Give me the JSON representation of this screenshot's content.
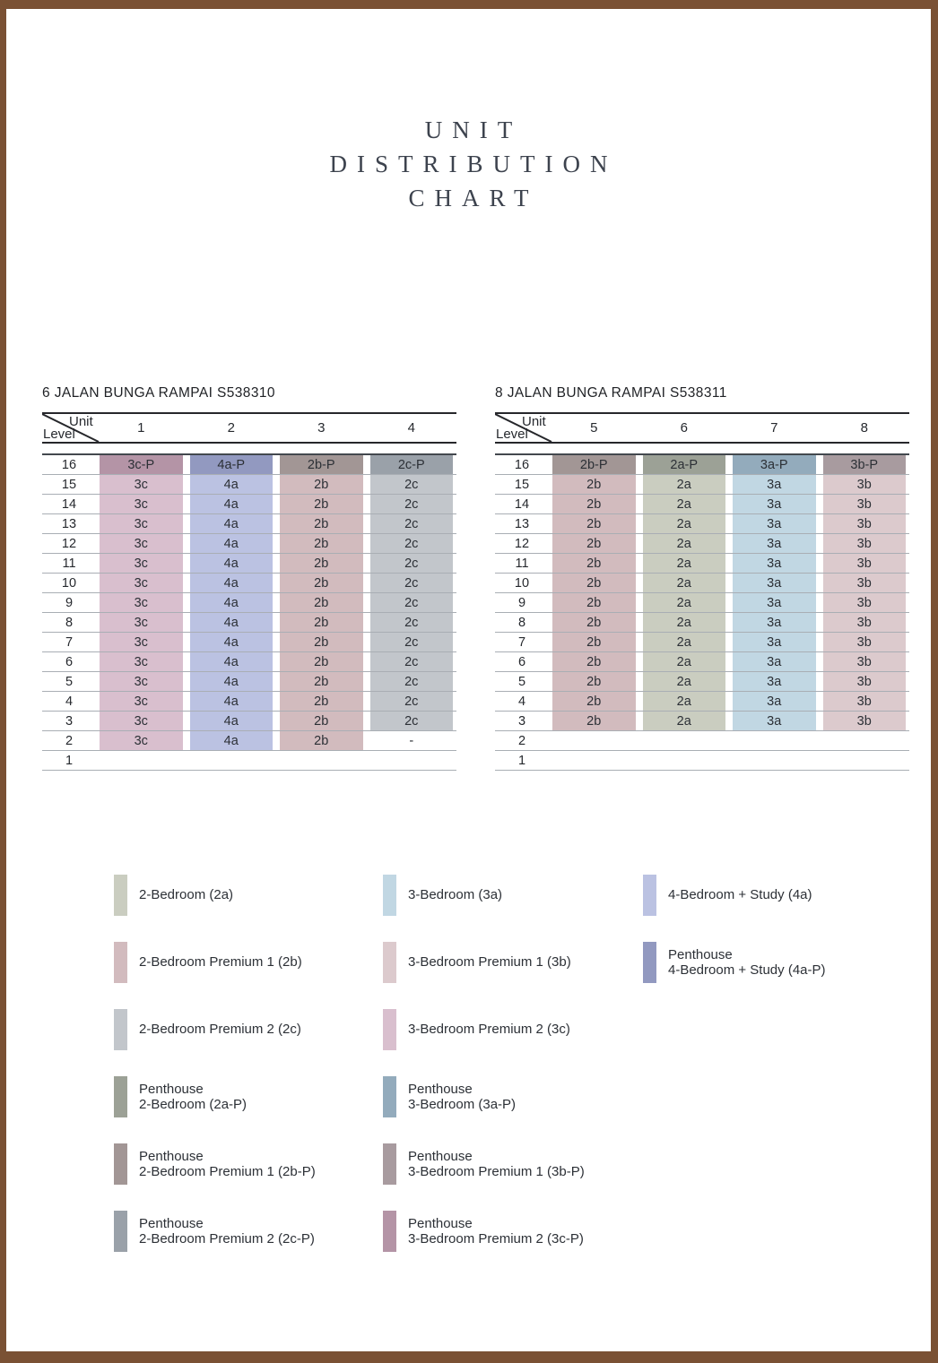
{
  "page": {
    "frame_color": "#7a5134",
    "title_color": "#3d434e",
    "title_lines": [
      "UNIT",
      "DISTRIBUTION",
      "CHART"
    ]
  },
  "unit_colors": {
    "2a": "#cacdc0",
    "2b": "#d2bbbe",
    "2c": "#c2c6cb",
    "3a": "#c1d7e3",
    "3b": "#dccacd",
    "3c": "#d9bfce",
    "4a": "#bbc2e2",
    "2a-P": "#9ca196",
    "2b-P": "#a29695",
    "2c-P": "#9aa1a9",
    "3a-P": "#93abbc",
    "3b-P": "#a89b9f",
    "3c-P": "#b494a6",
    "4a-P": "#9299c0"
  },
  "tables": [
    {
      "caption": "6 JALAN BUNGA RAMPAI S538310",
      "corner_top": "Unit",
      "corner_bottom": "Level",
      "columns": [
        "1",
        "2",
        "3",
        "4"
      ],
      "rows": [
        {
          "level": "16",
          "cells": [
            "3c-P",
            "4a-P",
            "2b-P",
            "2c-P"
          ]
        },
        {
          "level": "15",
          "cells": [
            "3c",
            "4a",
            "2b",
            "2c"
          ]
        },
        {
          "level": "14",
          "cells": [
            "3c",
            "4a",
            "2b",
            "2c"
          ]
        },
        {
          "level": "13",
          "cells": [
            "3c",
            "4a",
            "2b",
            "2c"
          ]
        },
        {
          "level": "12",
          "cells": [
            "3c",
            "4a",
            "2b",
            "2c"
          ]
        },
        {
          "level": "11",
          "cells": [
            "3c",
            "4a",
            "2b",
            "2c"
          ]
        },
        {
          "level": "10",
          "cells": [
            "3c",
            "4a",
            "2b",
            "2c"
          ]
        },
        {
          "level": "9",
          "cells": [
            "3c",
            "4a",
            "2b",
            "2c"
          ]
        },
        {
          "level": "8",
          "cells": [
            "3c",
            "4a",
            "2b",
            "2c"
          ]
        },
        {
          "level": "7",
          "cells": [
            "3c",
            "4a",
            "2b",
            "2c"
          ]
        },
        {
          "level": "6",
          "cells": [
            "3c",
            "4a",
            "2b",
            "2c"
          ]
        },
        {
          "level": "5",
          "cells": [
            "3c",
            "4a",
            "2b",
            "2c"
          ]
        },
        {
          "level": "4",
          "cells": [
            "3c",
            "4a",
            "2b",
            "2c"
          ]
        },
        {
          "level": "3",
          "cells": [
            "3c",
            "4a",
            "2b",
            "2c"
          ]
        },
        {
          "level": "2",
          "cells": [
            "3c",
            "4a",
            "2b",
            "-"
          ]
        },
        {
          "level": "1",
          "cells": [
            null,
            null,
            null,
            null
          ]
        }
      ]
    },
    {
      "caption": "8 JALAN BUNGA RAMPAI S538311",
      "corner_top": "Unit",
      "corner_bottom": "Level",
      "columns": [
        "5",
        "6",
        "7",
        "8"
      ],
      "rows": [
        {
          "level": "16",
          "cells": [
            "2b-P",
            "2a-P",
            "3a-P",
            "3b-P"
          ]
        },
        {
          "level": "15",
          "cells": [
            "2b",
            "2a",
            "3a",
            "3b"
          ]
        },
        {
          "level": "14",
          "cells": [
            "2b",
            "2a",
            "3a",
            "3b"
          ]
        },
        {
          "level": "13",
          "cells": [
            "2b",
            "2a",
            "3a",
            "3b"
          ]
        },
        {
          "level": "12",
          "cells": [
            "2b",
            "2a",
            "3a",
            "3b"
          ]
        },
        {
          "level": "11",
          "cells": [
            "2b",
            "2a",
            "3a",
            "3b"
          ]
        },
        {
          "level": "10",
          "cells": [
            "2b",
            "2a",
            "3a",
            "3b"
          ]
        },
        {
          "level": "9",
          "cells": [
            "2b",
            "2a",
            "3a",
            "3b"
          ]
        },
        {
          "level": "8",
          "cells": [
            "2b",
            "2a",
            "3a",
            "3b"
          ]
        },
        {
          "level": "7",
          "cells": [
            "2b",
            "2a",
            "3a",
            "3b"
          ]
        },
        {
          "level": "6",
          "cells": [
            "2b",
            "2a",
            "3a",
            "3b"
          ]
        },
        {
          "level": "5",
          "cells": [
            "2b",
            "2a",
            "3a",
            "3b"
          ]
        },
        {
          "level": "4",
          "cells": [
            "2b",
            "2a",
            "3a",
            "3b"
          ]
        },
        {
          "level": "3",
          "cells": [
            "2b",
            "2a",
            "3a",
            "3b"
          ]
        },
        {
          "level": "2",
          "cells": [
            null,
            null,
            null,
            null
          ]
        },
        {
          "level": "1",
          "cells": [
            null,
            null,
            null,
            null
          ]
        }
      ]
    }
  ],
  "legend": {
    "columns": [
      [
        {
          "key": "2a",
          "lines": [
            "2-Bedroom (2a)"
          ]
        },
        {
          "key": "2b",
          "lines": [
            "2-Bedroom Premium 1 (2b)"
          ]
        },
        {
          "key": "2c",
          "lines": [
            "2-Bedroom Premium 2 (2c)"
          ]
        },
        {
          "key": "2a-P",
          "lines": [
            "Penthouse",
            "2-Bedroom (2a-P)"
          ]
        },
        {
          "key": "2b-P",
          "lines": [
            "Penthouse",
            "2-Bedroom Premium 1 (2b-P)"
          ]
        },
        {
          "key": "2c-P",
          "lines": [
            "Penthouse",
            "2-Bedroom Premium 2 (2c-P)"
          ]
        }
      ],
      [
        {
          "key": "3a",
          "lines": [
            "3-Bedroom (3a)"
          ]
        },
        {
          "key": "3b",
          "lines": [
            "3-Bedroom Premium 1 (3b)"
          ]
        },
        {
          "key": "3c",
          "lines": [
            "3-Bedroom Premium 2 (3c)"
          ]
        },
        {
          "key": "3a-P",
          "lines": [
            "Penthouse",
            "3-Bedroom (3a-P)"
          ]
        },
        {
          "key": "3b-P",
          "lines": [
            "Penthouse",
            "3-Bedroom Premium 1 (3b-P)"
          ]
        },
        {
          "key": "3c-P",
          "lines": [
            "Penthouse",
            "3-Bedroom Premium 2 (3c-P)"
          ]
        }
      ],
      [
        {
          "key": "4a",
          "lines": [
            "4-Bedroom + Study (4a)"
          ]
        },
        {
          "key": "4a-P",
          "lines": [
            "Penthouse",
            "4-Bedroom + Study (4a-P)"
          ]
        }
      ]
    ]
  }
}
